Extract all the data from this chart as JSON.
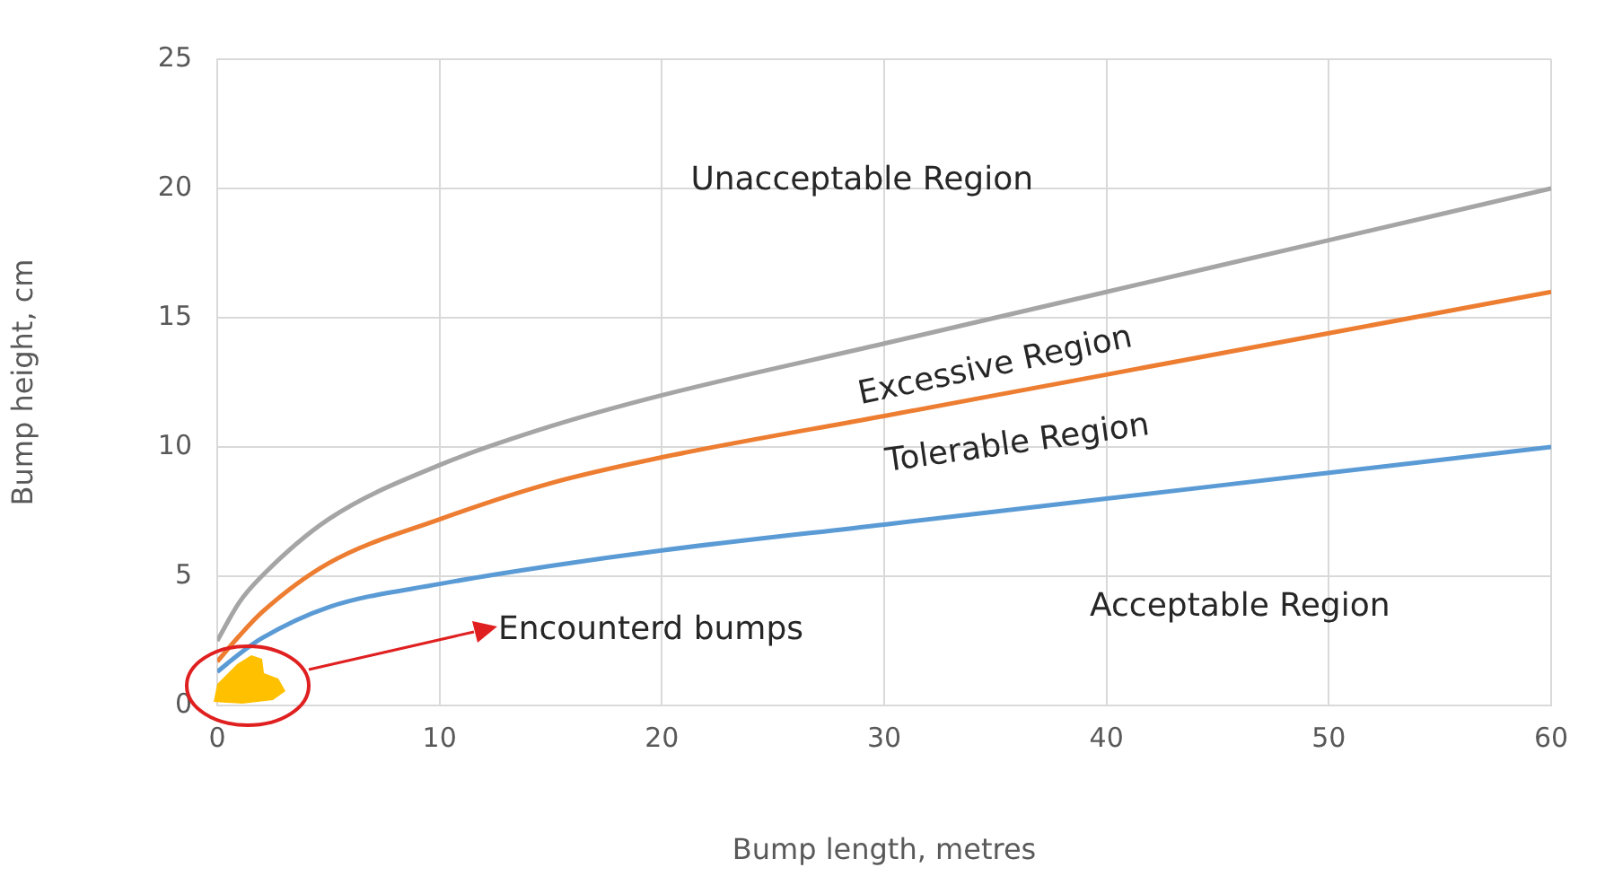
{
  "chart_data": {
    "type": "line",
    "xlabel": "Bump length, metres",
    "ylabel": "Bump height, cm",
    "xlim": [
      0,
      60
    ],
    "ylim": [
      0,
      25
    ],
    "xticks": [
      0,
      10,
      20,
      30,
      40,
      50,
      60
    ],
    "yticks": [
      0,
      5,
      10,
      15,
      20,
      25
    ],
    "grid": true,
    "legend": false,
    "marker": "none",
    "line_style": "solid",
    "series": [
      {
        "color": "#a5a5a5",
        "x": [
          0,
          1,
          2,
          5,
          10,
          15,
          20,
          30,
          40,
          50,
          60
        ],
        "values": [
          2.5,
          4,
          5,
          7.2,
          9.3,
          10.8,
          12,
          14,
          16,
          18,
          20
        ]
      },
      {
        "color": "#ed7d31",
        "x": [
          0,
          1,
          2,
          5,
          10,
          15,
          20,
          30,
          40,
          50,
          60
        ],
        "values": [
          1.7,
          2.7,
          3.6,
          5.5,
          7.2,
          8.6,
          9.6,
          11.2,
          12.8,
          14.4,
          16
        ]
      },
      {
        "color": "#5b9bd5",
        "x": [
          0,
          1,
          2,
          5,
          10,
          15,
          20,
          30,
          40,
          50,
          60
        ],
        "values": [
          1.3,
          2,
          2.6,
          3.8,
          4.7,
          5.4,
          6,
          7,
          8,
          9,
          10
        ]
      }
    ],
    "annotations": [
      "Unacceptable Region",
      "Excessive Region",
      "Tolerable Region",
      "Acceptable Region",
      "Encounterd bumps"
    ]
  }
}
